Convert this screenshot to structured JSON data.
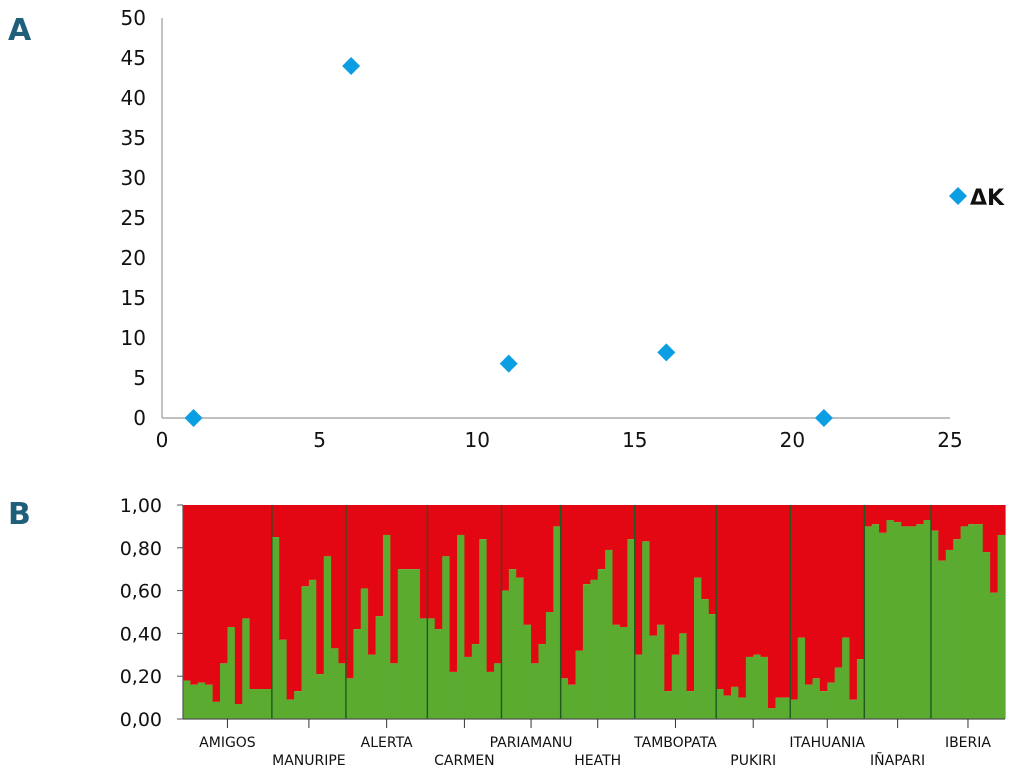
{
  "panel_a": {
    "letter": "A",
    "chart_data": {
      "type": "scatter",
      "title": "",
      "xlabel": "",
      "ylabel": "",
      "xlim": [
        0,
        25
      ],
      "ylim": [
        0,
        50
      ],
      "x_ticks": [
        0,
        5,
        10,
        15,
        20,
        25
      ],
      "y_ticks": [
        0,
        5,
        10,
        15,
        20,
        25,
        30,
        35,
        40,
        45,
        50
      ],
      "grid": false,
      "legend_position": "right",
      "series": [
        {
          "name": "ΔK",
          "color": "#0b9ee3",
          "marker": "diamond",
          "points": [
            {
              "x": 1,
              "y": 0
            },
            {
              "x": 6,
              "y": 44
            },
            {
              "x": 11,
              "y": 6.8
            },
            {
              "x": 16,
              "y": 8.2
            },
            {
              "x": 21,
              "y": 0
            }
          ]
        }
      ]
    }
  },
  "panel_b": {
    "letter": "B",
    "chart_data": {
      "type": "bar",
      "subtype": "stacked-100-percent",
      "title": "",
      "xlabel": "",
      "ylabel": "",
      "ylim": [
        0,
        1
      ],
      "y_ticks": [
        "0,00",
        "0,20",
        "0,40",
        "0,60",
        "0,80",
        "1,00"
      ],
      "colors": {
        "upper": "#e30613",
        "lower": "#5aab2f",
        "separator": "#1e5a1e"
      },
      "populations": [
        {
          "label": "AMIGOS",
          "label_row": 1,
          "values": [
            0.18,
            0.16,
            0.17,
            0.16,
            0.08,
            0.26,
            0.43,
            0.07,
            0.47,
            0.14,
            0.14,
            0.14
          ]
        },
        {
          "label": "MANURIPE",
          "label_row": 2,
          "values": [
            0.85,
            0.37,
            0.09,
            0.13,
            0.62,
            0.65,
            0.21,
            0.76,
            0.33,
            0.26
          ]
        },
        {
          "label": "ALERTA",
          "label_row": 1,
          "values": [
            0.19,
            0.42,
            0.61,
            0.3,
            0.48,
            0.86,
            0.26,
            0.7,
            0.7,
            0.7,
            0.47
          ]
        },
        {
          "label": "CARMEN",
          "label_row": 2,
          "values": [
            0.47,
            0.42,
            0.76,
            0.22,
            0.86,
            0.29,
            0.35,
            0.84,
            0.22,
            0.26
          ]
        },
        {
          "label": "PARIAMANU",
          "label_row": 1,
          "values": [
            0.6,
            0.7,
            0.66,
            0.44,
            0.26,
            0.35,
            0.5,
            0.9
          ]
        },
        {
          "label": "HEATH",
          "label_row": 2,
          "values": [
            0.19,
            0.16,
            0.32,
            0.63,
            0.65,
            0.7,
            0.79,
            0.44,
            0.43,
            0.84
          ]
        },
        {
          "label": "TAMBOPATA",
          "label_row": 1,
          "values": [
            0.3,
            0.83,
            0.39,
            0.44,
            0.13,
            0.3,
            0.4,
            0.13,
            0.66,
            0.56,
            0.49
          ]
        },
        {
          "label": "PUKIRI",
          "label_row": 2,
          "values": [
            0.14,
            0.11,
            0.15,
            0.1,
            0.29,
            0.3,
            0.29,
            0.05,
            0.1,
            0.1
          ]
        },
        {
          "label": "ITAHUANIA",
          "label_row": 1,
          "values": [
            0.09,
            0.38,
            0.16,
            0.19,
            0.13,
            0.17,
            0.24,
            0.38,
            0.09,
            0.28
          ]
        },
        {
          "label": "IÑAPARI",
          "label_row": 2,
          "values": [
            0.9,
            0.91,
            0.87,
            0.93,
            0.92,
            0.9,
            0.9,
            0.91,
            0.93
          ]
        },
        {
          "label": "IBERIA",
          "label_row": 1,
          "values": [
            0.88,
            0.74,
            0.79,
            0.84,
            0.9,
            0.91,
            0.91,
            0.78,
            0.59,
            0.86
          ]
        }
      ]
    }
  }
}
